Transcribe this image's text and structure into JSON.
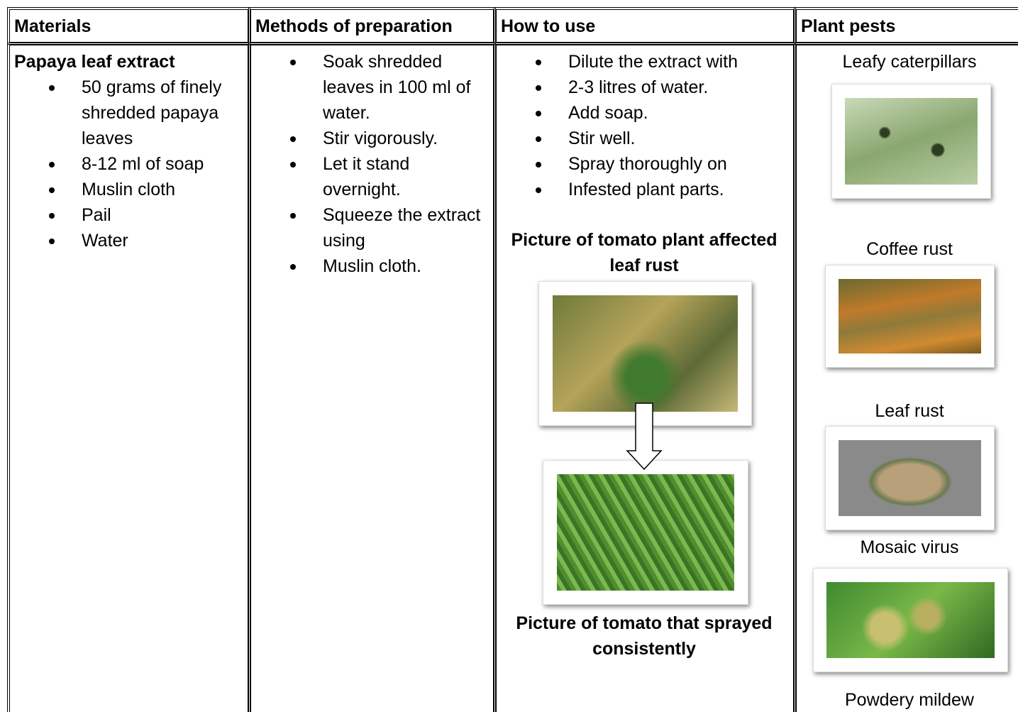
{
  "table": {
    "headers": [
      "Materials",
      "Methods of preparation",
      "How to use",
      "Plant pests"
    ],
    "materials": {
      "title": "Papaya leaf extract",
      "items": [
        "50 grams of finely shredded papaya leaves",
        "8-12 ml of soap",
        "Muslin cloth",
        "Pail",
        "Water"
      ]
    },
    "methods": {
      "items": [
        "Soak shredded leaves in 100 ml of water.",
        "Stir vigorously.",
        "Let it stand overnight.",
        "Squeeze the extract using",
        "Muslin cloth."
      ]
    },
    "how_to_use": {
      "items": [
        "Dilute the extract with",
        "2-3 litres of water.",
        "Add soap.",
        "Stir well.",
        "Spray thoroughly on",
        "Infested plant parts."
      ],
      "caption_before": "Picture of tomato plant affected leaf rust",
      "caption_after": "Picture of tomato that sprayed consistently"
    },
    "plant_pests": [
      "Leafy caterpillars",
      "Coffee rust",
      "Leaf rust",
      "Mosaic virus",
      "Powdery mildew"
    ]
  }
}
